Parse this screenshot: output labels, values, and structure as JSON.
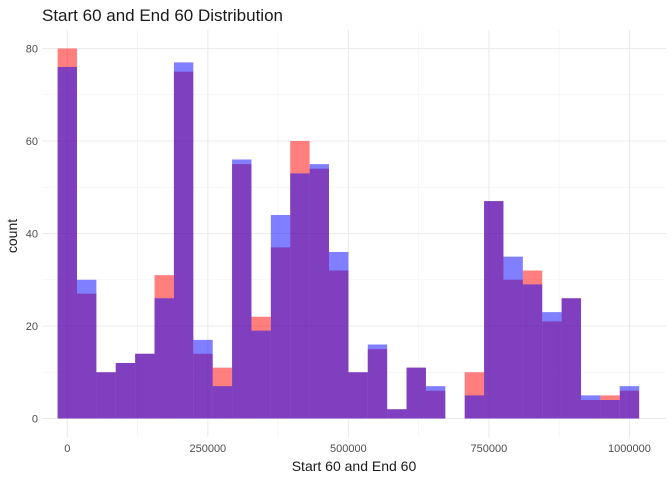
{
  "chart_data": {
    "type": "bar",
    "subtype": "overlaid-histogram",
    "title": "Start 60 and End 60 Distribution",
    "xlabel": "Start 60 and End 60",
    "ylabel": "count",
    "xlim": [
      -45000,
      1065000
    ],
    "ylim": [
      -4,
      84
    ],
    "bin_width": 34483,
    "x_ticks": [
      0,
      250000,
      500000,
      750000,
      1000000
    ],
    "x_tick_labels": [
      "0",
      "250000",
      "500000",
      "750000",
      "1000000"
    ],
    "x_minor_ticks": [
      125000,
      375000,
      625000,
      875000
    ],
    "y_ticks": [
      0,
      20,
      40,
      60,
      80
    ],
    "y_tick_labels": [
      "0",
      "20",
      "40",
      "60",
      "80"
    ],
    "y_minor_ticks": [
      10,
      30,
      50,
      70
    ],
    "bin_centers": [
      0,
      34483,
      68966,
      103448,
      137931,
      172414,
      206897,
      241379,
      275862,
      310345,
      344828,
      379310,
      413793,
      448276,
      482759,
      517241,
      551724,
      586207,
      620690,
      655172,
      689655,
      724138,
      758621,
      793103,
      827586,
      862069,
      896552,
      931034,
      965517,
      1000000
    ],
    "grid": true,
    "legend": "none",
    "series": [
      {
        "name": "",
        "color": "#ff0000",
        "opacity": 0.5,
        "values": [
          80,
          27,
          10,
          12,
          14,
          31,
          75,
          14,
          11,
          55,
          22,
          37,
          60,
          54,
          32,
          10,
          15,
          2,
          11,
          6,
          0,
          10,
          47,
          30,
          32,
          21,
          26,
          4,
          5,
          6
        ]
      },
      {
        "name": "",
        "color": "#0000ff",
        "opacity": 0.5,
        "values": [
          76,
          30,
          10,
          12,
          14,
          26,
          77,
          17,
          7,
          56,
          19,
          44,
          53,
          55,
          36,
          10,
          16,
          2,
          11,
          7,
          0,
          5,
          47,
          35,
          29,
          23,
          26,
          5,
          4,
          7
        ]
      }
    ]
  }
}
